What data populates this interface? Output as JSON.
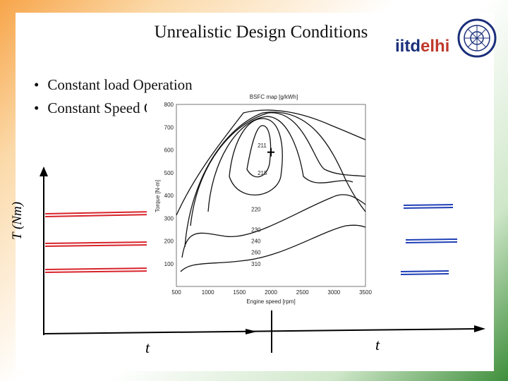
{
  "slide": {
    "title": "Unrealistic Design Conditions",
    "logo": {
      "text_prefix": "iitd",
      "text_suffix": "elhi",
      "prefix_color": "#1a2f7a",
      "suffix_color": "#c0392b"
    },
    "bullets": [
      "Constant load Operation",
      "Constant Speed Operation"
    ],
    "y_axis_label": "T (Nm)",
    "t_label_left": "t",
    "t_label_right": "t",
    "colors": {
      "red_lines": "#d8232a",
      "blue_lines": "#1f3fb6",
      "frame_orange": "#f7a54a",
      "frame_green": "#3e8e3b"
    }
  },
  "chart_data": {
    "type": "line",
    "title": "BSFC map [g/kWh]",
    "xlabel": "Engine speed [rpm]",
    "ylabel": "Torque [N-m]",
    "xlim": [
      500,
      3500
    ],
    "ylim": [
      0,
      800
    ],
    "x_ticks": [
      "500",
      "1000",
      "1500",
      "2000",
      "2500",
      "3000",
      "3500"
    ],
    "y_ticks": [
      "100",
      "200",
      "300",
      "400",
      "500",
      "600",
      "700",
      "800"
    ],
    "contour_labels": [
      {
        "text": "211",
        "x": 1900,
        "y": 620
      },
      {
        "text": "215",
        "x": 1900,
        "y": 500
      },
      {
        "text": "220",
        "x": 1800,
        "y": 340
      },
      {
        "text": "230",
        "x": 1800,
        "y": 250
      },
      {
        "text": "240",
        "x": 1800,
        "y": 200
      },
      {
        "text": "260",
        "x": 1800,
        "y": 150
      },
      {
        "text": "310",
        "x": 1800,
        "y": 100
      }
    ],
    "optimum_point": {
      "x": 2000,
      "y": 590
    }
  }
}
